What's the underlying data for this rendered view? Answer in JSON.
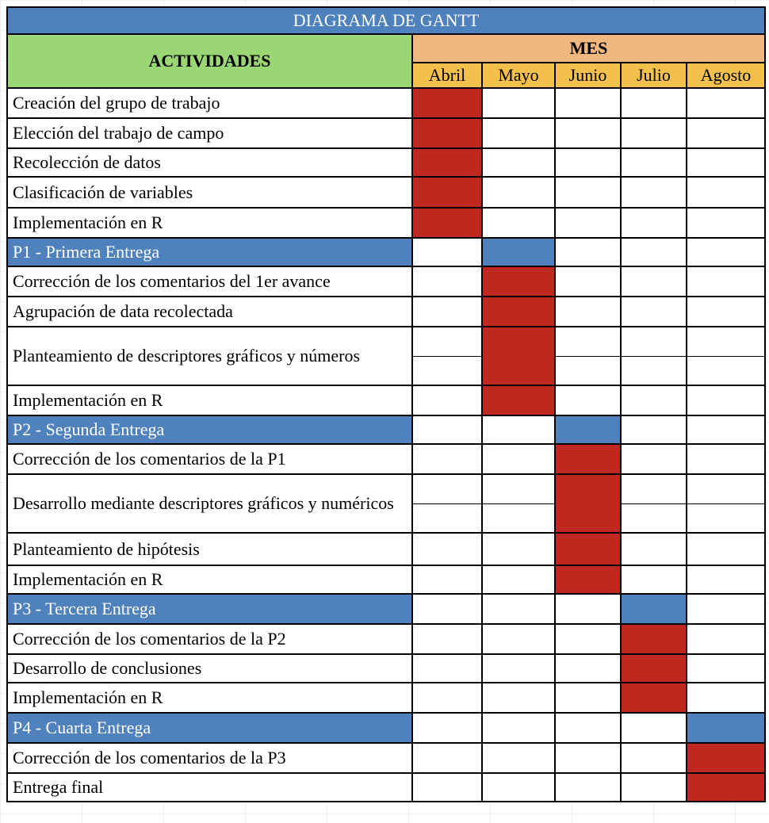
{
  "title": "DIAGRAMA DE GANTT",
  "header": {
    "activities_label": "ACTIVIDADES",
    "month_group_label": "MES",
    "months": [
      "Abril",
      "Mayo",
      "Junio",
      "Julio",
      "Agosto"
    ]
  },
  "colors": {
    "title_bg": "#4f81bd",
    "activities_bg": "#9bd674",
    "mes_bg": "#f0b87f",
    "months_bg": "#f3c04c",
    "task_fill": "#c0281f",
    "phase_fill": "#4f81bd"
  },
  "rows": [
    {
      "label": "Creación del grupo de trabajo",
      "type": "task",
      "month": 0
    },
    {
      "label": "Elección del trabajo de campo",
      "type": "task",
      "month": 0
    },
    {
      "label": "Recolección de datos",
      "type": "task",
      "month": 0
    },
    {
      "label": "Clasificación de variables",
      "type": "task",
      "month": 0
    },
    {
      "label": "Implementación en R",
      "type": "task",
      "month": 0
    },
    {
      "label": "P1 - Primera Entrega",
      "type": "phase",
      "month": 1
    },
    {
      "label": "Corrección de los comentarios del 1er avance",
      "type": "task",
      "month": 1
    },
    {
      "label": "Agrupación de data recolectada",
      "type": "task",
      "month": 1
    },
    {
      "label": "Planteamiento de descriptores gráficos y números",
      "type": "task",
      "month": 1,
      "tall": true
    },
    {
      "label": "Implementación en R",
      "type": "task",
      "month": 1
    },
    {
      "label": "P2 - Segunda Entrega",
      "type": "phase",
      "month": 2
    },
    {
      "label": "Corrección de los comentarios de la P1",
      "type": "task",
      "month": 2
    },
    {
      "label": "Desarrollo mediante descriptores gráficos y numéricos",
      "type": "task",
      "month": 2,
      "tall": true
    },
    {
      "label": "Planteamiento de hipótesis",
      "type": "task",
      "month": 2
    },
    {
      "label": "Implementación en R",
      "type": "task",
      "month": 2
    },
    {
      "label": "P3 - Tercera Entrega",
      "type": "phase",
      "month": 3
    },
    {
      "label": "Corrección de los comentarios de la P2",
      "type": "task",
      "month": 3
    },
    {
      "label": "Desarrollo de conclusiones",
      "type": "task",
      "month": 3
    },
    {
      "label": "Implementación en R",
      "type": "task",
      "month": 3
    },
    {
      "label": "P4 - Cuarta Entrega",
      "type": "phase",
      "month": 4
    },
    {
      "label": "Corrección de los comentarios de la P3",
      "type": "task",
      "month": 4
    },
    {
      "label": "Entrega final",
      "type": "task",
      "month": 4
    }
  ]
}
